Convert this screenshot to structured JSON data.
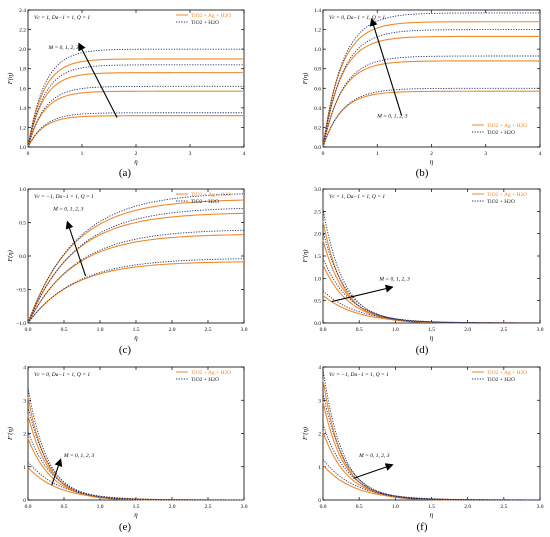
{
  "figure": {
    "panels": [
      "(a)",
      "(b)",
      "(c)",
      "(d)",
      "(e)",
      "(f)"
    ]
  },
  "colors": {
    "hybrid": "#ee8a2e",
    "mono": "#1c2f6e",
    "axis": "#000000",
    "arrow": "#000000"
  },
  "chart_data": [
    {
      "type": "line",
      "panel": "(a)",
      "ylabel": "F(η)",
      "xlabel": "η",
      "params": "Vc = 1, Da−1 = 1, Q = 1",
      "arrow_label": "M = 0, 1, 2, 3",
      "xlim": [
        0,
        4
      ],
      "ylim": [
        1.0,
        2.4
      ],
      "xticks": [
        "0",
        "1",
        "2",
        "3",
        "4"
      ],
      "yticks": [
        "1.0",
        "1.2",
        "1.4",
        "1.6",
        "1.8",
        "2.0",
        "2.2",
        "2.4"
      ],
      "legend": [
        "TiO2 + Ag + H2O",
        "TiO2 + H2O"
      ],
      "legend_placement": "top-right",
      "series": [
        {
          "name": "TiO2 + Ag + H2O",
          "style": "solid",
          "start": 1.0,
          "asymptotes": [
            1.32,
            1.57,
            1.76,
            1.9
          ],
          "rate": 3.5
        },
        {
          "name": "TiO2 + H2O",
          "style": "dotted",
          "start": 1.0,
          "asymptotes": [
            1.35,
            1.62,
            1.84,
            2.0
          ],
          "rate": 3.3
        }
      ],
      "arrow": {
        "from": [
          1.65,
          1.3
        ],
        "to": [
          0.95,
          2.05
        ]
      },
      "arrow_label_pos": [
        0.38,
        2.0
      ]
    },
    {
      "type": "line",
      "panel": "(b)",
      "ylabel": "F(η)",
      "xlabel": "η",
      "params": "Vc = 0, Da−1 = 1, Q = 1",
      "arrow_label": "M = 0, 1, 2, 3",
      "xlim": [
        0,
        4
      ],
      "ylim": [
        0.0,
        1.4
      ],
      "xticks": [
        "0",
        "1",
        "2",
        "3",
        "4"
      ],
      "yticks": [
        "0.0",
        "0.2",
        "0.4",
        "0.6",
        "0.8",
        "1.0",
        "1.2",
        "1.4"
      ],
      "legend": [
        "TiO2 + Ag + H2O",
        "TiO2 + H2O"
      ],
      "legend_placement": "bottom-right",
      "series": [
        {
          "name": "TiO2 + Ag + H2O",
          "style": "solid",
          "start": 0.0,
          "asymptotes": [
            0.57,
            0.88,
            1.13,
            1.28
          ],
          "rate": 3.0
        },
        {
          "name": "TiO2 + H2O",
          "style": "dotted",
          "start": 0.0,
          "asymptotes": [
            0.6,
            0.93,
            1.2,
            1.37
          ],
          "rate": 2.8
        }
      ],
      "arrow": {
        "from": [
          1.45,
          0.32
        ],
        "to": [
          0.9,
          1.3
        ]
      },
      "arrow_label_pos": [
        1.0,
        0.3
      ]
    },
    {
      "type": "line",
      "panel": "(c)",
      "ylabel": "F(η)",
      "xlabel": "η",
      "params": "Vc = −1, Da−1 = 1, Q = 1",
      "arrow_label": "M = 0, 1, 2, 3",
      "xlim": [
        0,
        3
      ],
      "ylim": [
        -1.0,
        1.0
      ],
      "xticks": [
        "0.0",
        "0.5",
        "1.0",
        "1.5",
        "2.0",
        "2.5",
        "3.0"
      ],
      "yticks": [
        "−1.0",
        "−0.5",
        "0.0",
        "0.5",
        "1.0"
      ],
      "legend": [
        "TiO2 + Ag + H2O",
        "TiO2 + H2O"
      ],
      "legend_placement": "top-right",
      "series": [
        {
          "name": "TiO2 + Ag + H2O",
          "style": "solid",
          "start": -1.0,
          "asymptotes": [
            -0.08,
            0.33,
            0.65,
            0.85
          ],
          "rate": 1.6
        },
        {
          "name": "TiO2 + H2O",
          "style": "dotted",
          "start": -1.0,
          "asymptotes": [
            -0.03,
            0.4,
            0.73,
            0.95
          ],
          "rate": 1.5
        }
      ],
      "arrow": {
        "from": [
          0.8,
          -0.3
        ],
        "to": [
          0.55,
          0.5
        ]
      },
      "arrow_label_pos": [
        0.35,
        0.68
      ]
    },
    {
      "type": "line",
      "panel": "(d)",
      "ylabel": "F′(η)",
      "xlabel": "η",
      "params": "Vc = 1, Da−1 = 1, Q = 1",
      "arrow_label": "M = 0, 1, 2, 3",
      "xlim": [
        0,
        3
      ],
      "ylim": [
        0.0,
        3.0
      ],
      "xticks": [
        "0.0",
        "0.5",
        "1.0",
        "1.5",
        "2.0",
        "2.5",
        "3.0"
      ],
      "yticks": [
        "0.0",
        "0.5",
        "1.0",
        "1.5",
        "2.0",
        "2.5",
        "3.0"
      ],
      "legend": [
        "TiO2 + Ag + H2O",
        "TiO2 + H2O"
      ],
      "legend_placement": "top-right",
      "series": [
        {
          "name": "TiO2 + Ag + H2O",
          "style": "solid",
          "starts": [
            0.62,
            1.3,
            1.85,
            2.28
          ],
          "rates": [
            2.2,
            2.8,
            3.2,
            3.6
          ]
        },
        {
          "name": "TiO2 + H2O",
          "style": "dotted",
          "starts": [
            0.72,
            1.45,
            2.05,
            2.55
          ],
          "rates": [
            2.1,
            2.7,
            3.1,
            3.5
          ]
        }
      ],
      "arrow": {
        "from": [
          0.12,
          0.48
        ],
        "to": [
          0.95,
          0.8
        ]
      },
      "arrow_label_pos": [
        0.78,
        0.95
      ]
    },
    {
      "type": "line",
      "panel": "(e)",
      "ylabel": "F′(η)",
      "xlabel": "η",
      "params": "Vc = 0, Da−1 = 1, Q = 1",
      "arrow_label": "M = 0, 1, 2, 3",
      "xlim": [
        0,
        3
      ],
      "ylim": [
        0,
        4
      ],
      "xticks": [
        "0.0",
        "0.5",
        "1.0",
        "1.5",
        "2.0",
        "2.5",
        "3.0"
      ],
      "yticks": [
        "0",
        "1",
        "2",
        "3",
        "4"
      ],
      "legend": [
        "TiO2 + Ag + H2O",
        "TiO2 + H2O"
      ],
      "legend_placement": "top-right",
      "series": [
        {
          "name": "TiO2 + Ag + H2O",
          "style": "solid",
          "starts": [
            0.98,
            1.85,
            2.55,
            3.1
          ],
          "rates": [
            2.4,
            3.0,
            3.4,
            3.8
          ]
        },
        {
          "name": "TiO2 + H2O",
          "style": "dotted",
          "starts": [
            1.15,
            2.05,
            2.8,
            3.38
          ],
          "rates": [
            2.3,
            2.9,
            3.3,
            3.7
          ]
        }
      ],
      "arrow": {
        "from": [
          0.33,
          0.45
        ],
        "to": [
          0.45,
          1.2
        ]
      },
      "arrow_label_pos": [
        0.5,
        1.3
      ]
    },
    {
      "type": "line",
      "panel": "(f)",
      "ylabel": "F′(η)",
      "xlabel": "η",
      "params": "Vc = −1, Da−1 = 1, Q = 1",
      "arrow_label": "M = 0, 1, 2, 3",
      "xlim": [
        0,
        3
      ],
      "ylim": [
        0,
        4
      ],
      "xticks": [
        "0.0",
        "0.5",
        "1.0",
        "1.5",
        "2.0",
        "2.5",
        "3.0"
      ],
      "yticks": [
        "0",
        "1",
        "2",
        "3",
        "4"
      ],
      "legend": [
        "TiO2 + Ag + H2O",
        "TiO2 + H2O"
      ],
      "legend_placement": "top-right",
      "series": [
        {
          "name": "TiO2 + Ag + H2O",
          "style": "solid",
          "starts": [
            1.05,
            2.05,
            2.95,
            3.62
          ],
          "rates": [
            2.4,
            3.0,
            3.4,
            3.8
          ]
        },
        {
          "name": "TiO2 + H2O",
          "style": "dotted",
          "starts": [
            1.22,
            2.28,
            3.22,
            3.92
          ],
          "rates": [
            2.3,
            2.9,
            3.3,
            3.7
          ]
        }
      ],
      "arrow": {
        "from": [
          0.42,
          0.65
        ],
        "to": [
          0.95,
          1.05
        ]
      },
      "arrow_label_pos": [
        0.5,
        1.3
      ]
    }
  ]
}
